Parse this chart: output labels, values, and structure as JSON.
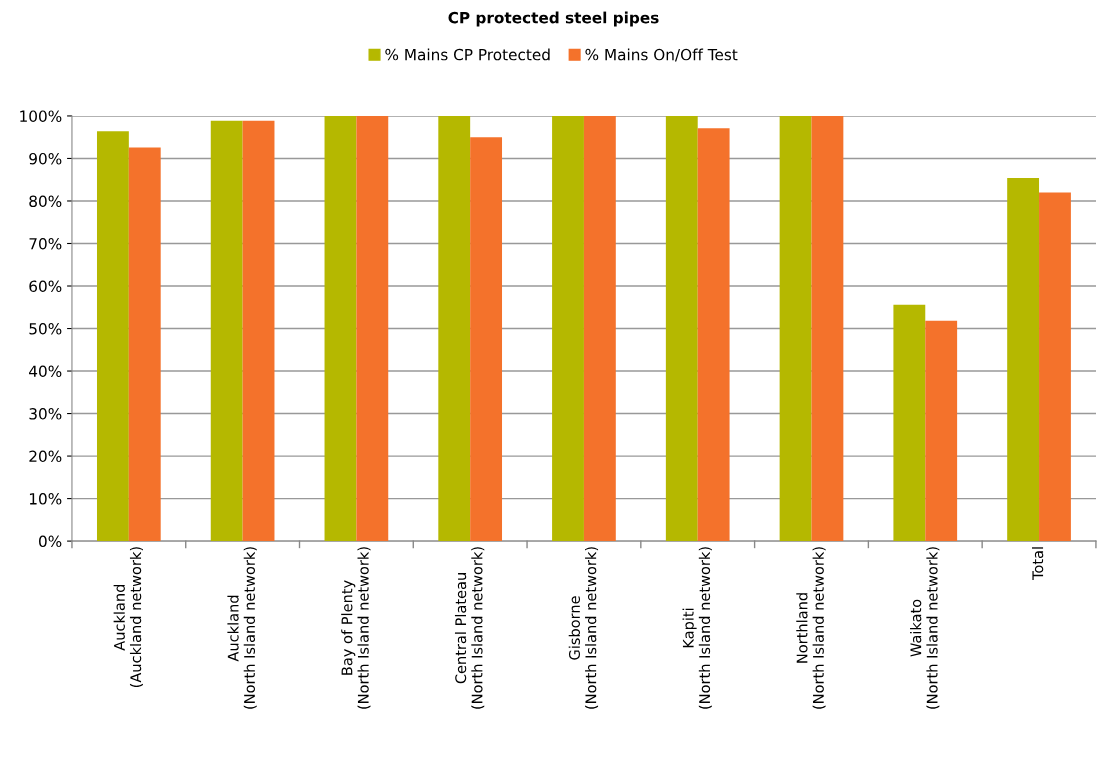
{
  "chart_data": {
    "type": "bar",
    "title": "CP protected steel pipes",
    "categories": [
      "Auckland\n(Auckland network)",
      "Auckland\n(North Island network)",
      "Bay of Plenty\n(North Island network)",
      "Central Plateau\n(North Island network)",
      "Gisborne\n(North Island network)",
      "Kapiti\n(North Island network)",
      "Northland\n(North Island network)",
      "Waikato\n(North Island network)",
      "Total"
    ],
    "series": [
      {
        "name": "% Mains CP Protected",
        "color": "#b5b800",
        "values": [
          96.4,
          98.9,
          100,
          100,
          100,
          100,
          100,
          55.6,
          85.4
        ]
      },
      {
        "name": "% Mains On/Off Test",
        "color": "#f4722b",
        "values": [
          92.6,
          98.9,
          100,
          95.0,
          100,
          97.1,
          100,
          51.8,
          82.0
        ]
      }
    ],
    "ylim": [
      0,
      100
    ],
    "yticks": [
      {
        "value": 0,
        "label": "0%"
      },
      {
        "value": 10,
        "label": "10%"
      },
      {
        "value": 20,
        "label": "20%"
      },
      {
        "value": 30,
        "label": "30%"
      },
      {
        "value": 40,
        "label": "40%"
      },
      {
        "value": 50,
        "label": "50%"
      },
      {
        "value": 60,
        "label": "60%"
      },
      {
        "value": 70,
        "label": "70%"
      },
      {
        "value": 80,
        "label": "80%"
      },
      {
        "value": 90,
        "label": "90%"
      },
      {
        "value": 100,
        "label": "100%"
      }
    ],
    "grid": "y",
    "legend": "top"
  }
}
